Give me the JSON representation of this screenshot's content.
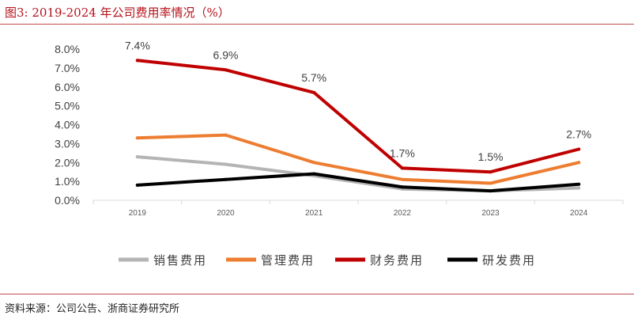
{
  "header": {
    "figure_title": "图3:   2019-2024 年公司费用率情况（%）"
  },
  "footer": {
    "source": "资料来源：公司公告、浙商证券研究所"
  },
  "chart_data": {
    "type": "line",
    "title": "",
    "xlabel": "",
    "ylabel": "",
    "categories": [
      "2019",
      "2020",
      "2021",
      "2022",
      "2023",
      "2024"
    ],
    "y_ticks": [
      "0.0%",
      "1.0%",
      "2.0%",
      "3.0%",
      "4.0%",
      "5.0%",
      "6.0%",
      "7.0%",
      "8.0%"
    ],
    "ylim": [
      0,
      8
    ],
    "grid": false,
    "legend_position": "bottom",
    "series": [
      {
        "name": "销售费用",
        "color": "#b4b4b4",
        "values": [
          2.3,
          1.9,
          1.3,
          0.6,
          0.5,
          0.65
        ]
      },
      {
        "name": "管理费用",
        "color": "#ed7d31",
        "values": [
          3.3,
          3.45,
          2.0,
          1.1,
          0.9,
          2.0
        ]
      },
      {
        "name": "财务费用",
        "color": "#c00000",
        "values": [
          7.4,
          6.9,
          5.7,
          1.7,
          1.5,
          2.7
        ],
        "data_labels": [
          "7.4%",
          "6.9%",
          "5.7%",
          "1.7%",
          "1.5%",
          "2.7%"
        ]
      },
      {
        "name": "研发费用",
        "color": "#000000",
        "values": [
          0.8,
          1.1,
          1.4,
          0.7,
          0.5,
          0.85
        ]
      }
    ]
  }
}
